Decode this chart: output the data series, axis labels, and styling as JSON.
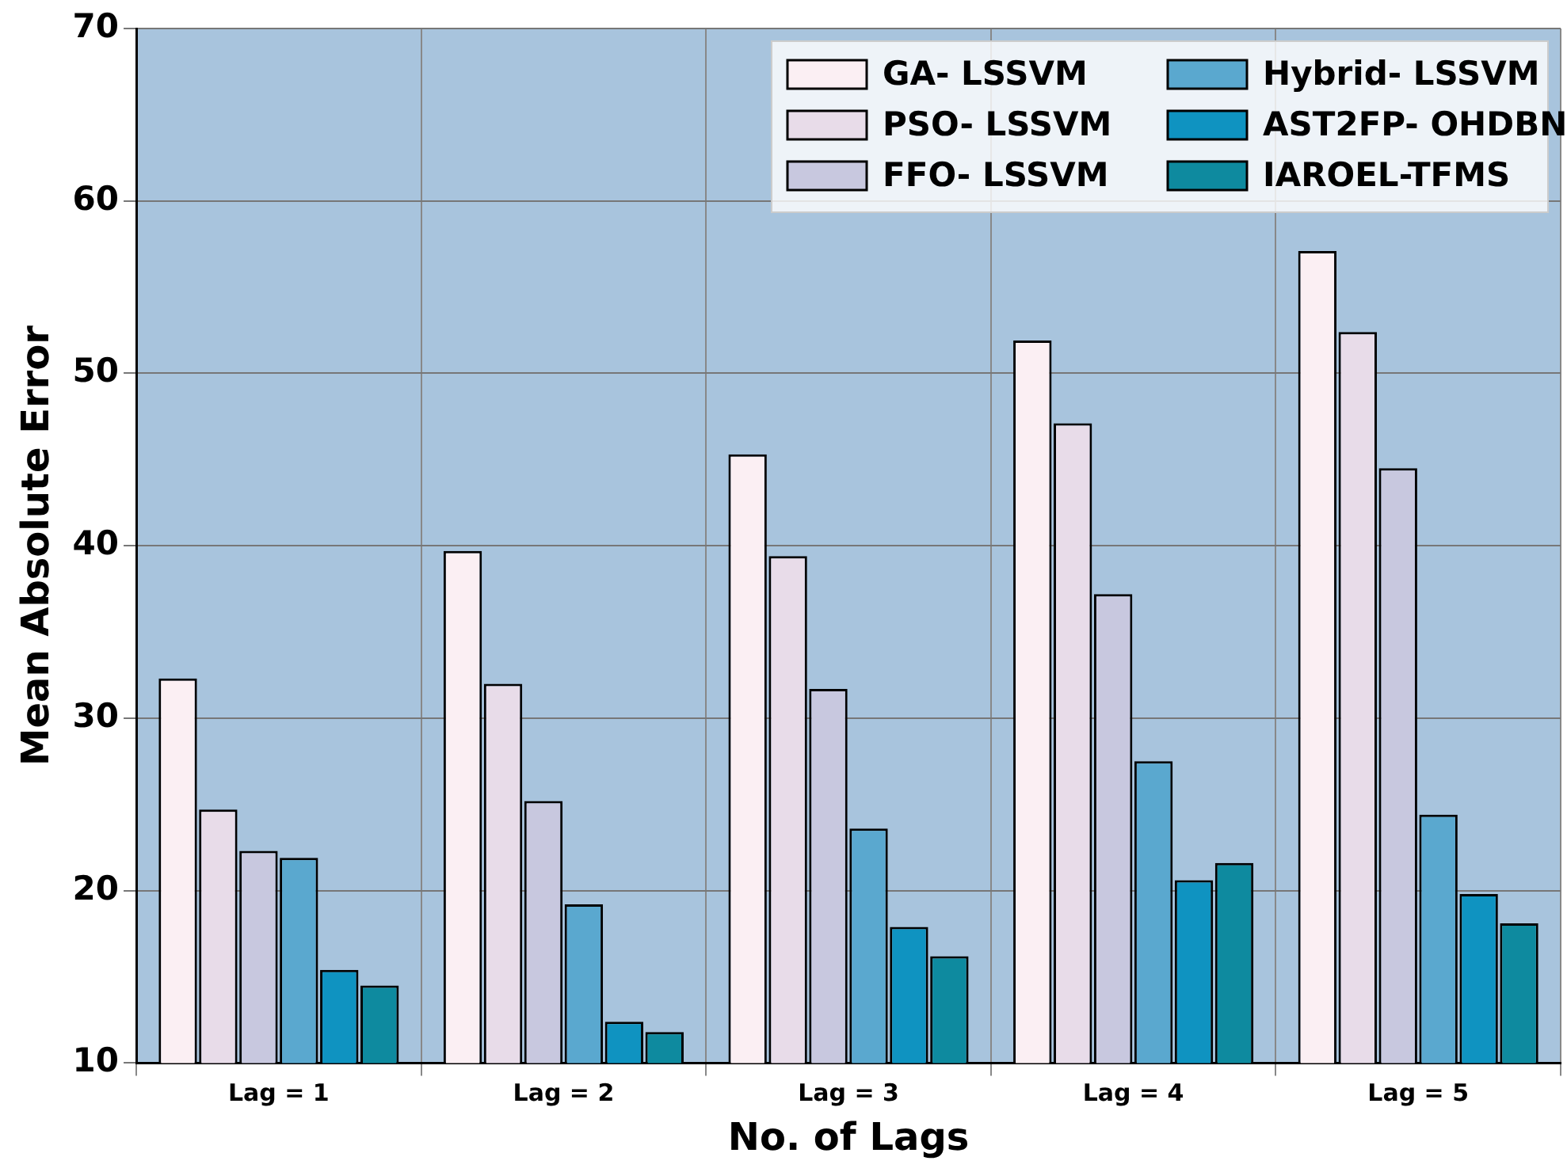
{
  "chart_data": {
    "type": "bar",
    "xlabel": "No. of Lags",
    "ylabel": "Mean Absolute Error",
    "categories": [
      "Lag = 1",
      "Lag = 2",
      "Lag = 3",
      "Lag = 4",
      "Lag = 5"
    ],
    "series": [
      {
        "name": "GA- LSSVM",
        "color": "#fbeff3",
        "values": [
          32.3,
          39.7,
          45.3,
          51.9,
          57.1
        ]
      },
      {
        "name": "PSO- LSSVM",
        "color": "#e8dce9",
        "values": [
          24.7,
          32.0,
          39.4,
          47.1,
          52.4
        ]
      },
      {
        "name": "FFO- LSSVM",
        "color": "#c8c8df",
        "values": [
          22.3,
          25.2,
          31.7,
          37.2,
          44.5
        ]
      },
      {
        "name": "Hybrid- LSSVM",
        "color": "#5aa8cf",
        "values": [
          21.9,
          19.2,
          23.6,
          27.5,
          24.4
        ]
      },
      {
        "name": "AST2FP- OHDBN",
        "color": "#0f93c1",
        "values": [
          15.4,
          12.4,
          17.9,
          20.6,
          19.8
        ]
      },
      {
        "name": "IAROEL-TFMS",
        "color": "#0e8a9f",
        "values": [
          14.5,
          11.8,
          16.2,
          21.6,
          18.1
        ]
      }
    ],
    "ylim": [
      10,
      70
    ],
    "yticks": [
      10,
      20,
      30,
      40,
      50,
      60,
      70
    ],
    "grid": true,
    "legend": "top right"
  }
}
